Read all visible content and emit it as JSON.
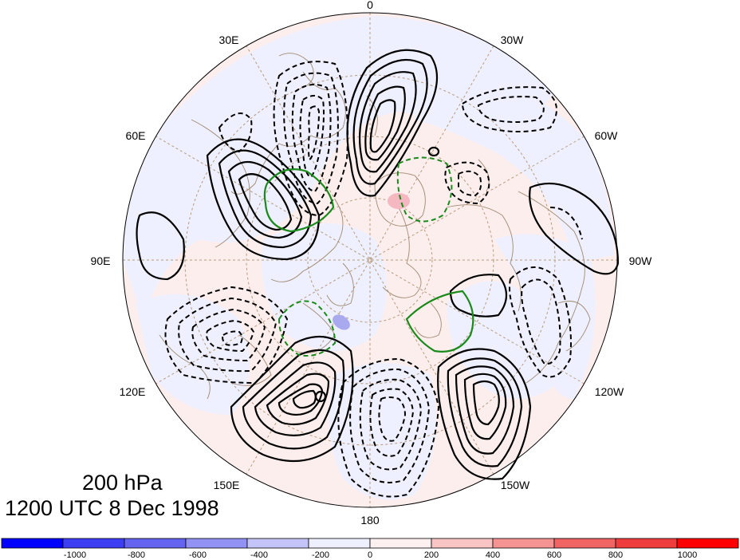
{
  "map": {
    "longitude_labels": [
      "0",
      "30W",
      "60W",
      "90W",
      "120W",
      "150W",
      "180",
      "150E",
      "120E",
      "90E",
      "60E",
      "30E"
    ],
    "caption": {
      "level": "200 hPa",
      "time": "1200 UTC 8 Dec 1998"
    }
  },
  "colorbar": {
    "tick_labels": [
      "-1000",
      "-800",
      "-600",
      "-400",
      "-200",
      "0",
      "200",
      "400",
      "600",
      "800",
      "1000"
    ],
    "colors": [
      "#0000ff",
      "#3d3df3",
      "#6464f0",
      "#9292f4",
      "#c4c4f8",
      "#eef0ff",
      "#fdf0f0",
      "#f9c4c4",
      "#f59292",
      "#f16464",
      "#ef3d3d",
      "#ff0000"
    ]
  },
  "styles": {
    "shading_positive": "#fdeeee",
    "shading_negative": "#eef0ff",
    "coastline": "#a08a72",
    "grid": "#b89a7a",
    "contour_positive": "#000000",
    "contour_negative": "#000000",
    "contour_zero_green": "#1a8a1a"
  }
}
